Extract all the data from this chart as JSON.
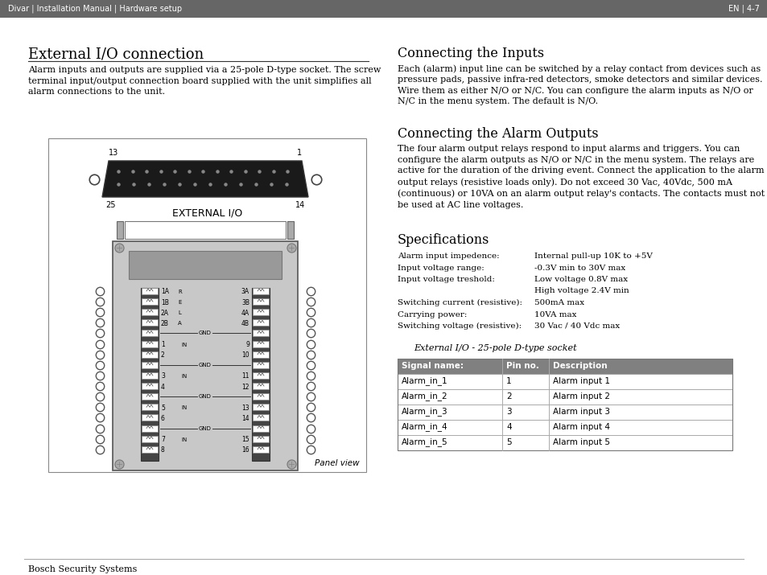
{
  "header_bg": "#666666",
  "header_text_left": "Divar | Installation Manual | Hardware setup",
  "header_text_right": "EN | 4-7",
  "page_bg": "#ffffff",
  "title": "External I/O connection",
  "intro_text": "Alarm inputs and outputs are supplied via a 25-pole D-type socket. The screw\nterminal input/output connection board supplied with the unit simplifies all\nalarm connections to the unit.",
  "panel_label": "EXTERNAL I/O",
  "panel_view_label": "Panel view",
  "right_section1_title": "Connecting the Inputs",
  "right_section1_text": "Each (alarm) input line can be switched by a relay contact from devices such as\npressure pads, passive infra-red detectors, smoke detectors and similar devices.\nWire them as either N/O or N/C. You can configure the alarm inputs as N/O or\nN/C in the menu system. The default is N/O.",
  "right_section2_title": "Connecting the Alarm Outputs",
  "right_section2_text": "The four alarm output relays respond to input alarms and triggers. You can\nconfigure the alarm outputs as N/O or N/C in the menu system. The relays are\nactive for the duration of the driving event. Connect the application to the alarm\noutput relays (resistive loads only). Do not exceed 30 Vac, 40Vdc, 500 mA\n(continuous) or 10VA on an alarm output relay's contacts. The contacts must not\nbe used at AC line voltages.",
  "right_section3_title": "Specifications",
  "specs": [
    [
      "Alarm input impedence:",
      "Internal pull-up 10K to +5V"
    ],
    [
      "Input voltage range:",
      "-0.3V min to 30V max"
    ],
    [
      "Input voltage treshold:",
      "Low voltage 0.8V max"
    ],
    [
      "",
      "High voltage 2.4V min"
    ],
    [
      "Switching current (resistive):",
      "500mA max"
    ],
    [
      "Carrying power:",
      "10VA max"
    ],
    [
      "Switching voltage (resistive):",
      "30 Vac / 40 Vdc max"
    ]
  ],
  "table_title": "External I/O - 25-pole D-type socket",
  "table_header": [
    "Signal name:",
    "Pin no.",
    "Description"
  ],
  "table_header_bg": "#808080",
  "table_header_text_color": "#ffffff",
  "table_rows": [
    [
      "Alarm_in_1",
      "1",
      "Alarm input 1"
    ],
    [
      "Alarm_in_2",
      "2",
      "Alarm input 2"
    ],
    [
      "Alarm_in_3",
      "3",
      "Alarm input 3"
    ],
    [
      "Alarm_in_4",
      "4",
      "Alarm input 4"
    ],
    [
      "Alarm_in_5",
      "5",
      "Alarm input 5"
    ]
  ],
  "footer_text": "Bosch Security Systems",
  "footer_line_color": "#aaaaaa"
}
